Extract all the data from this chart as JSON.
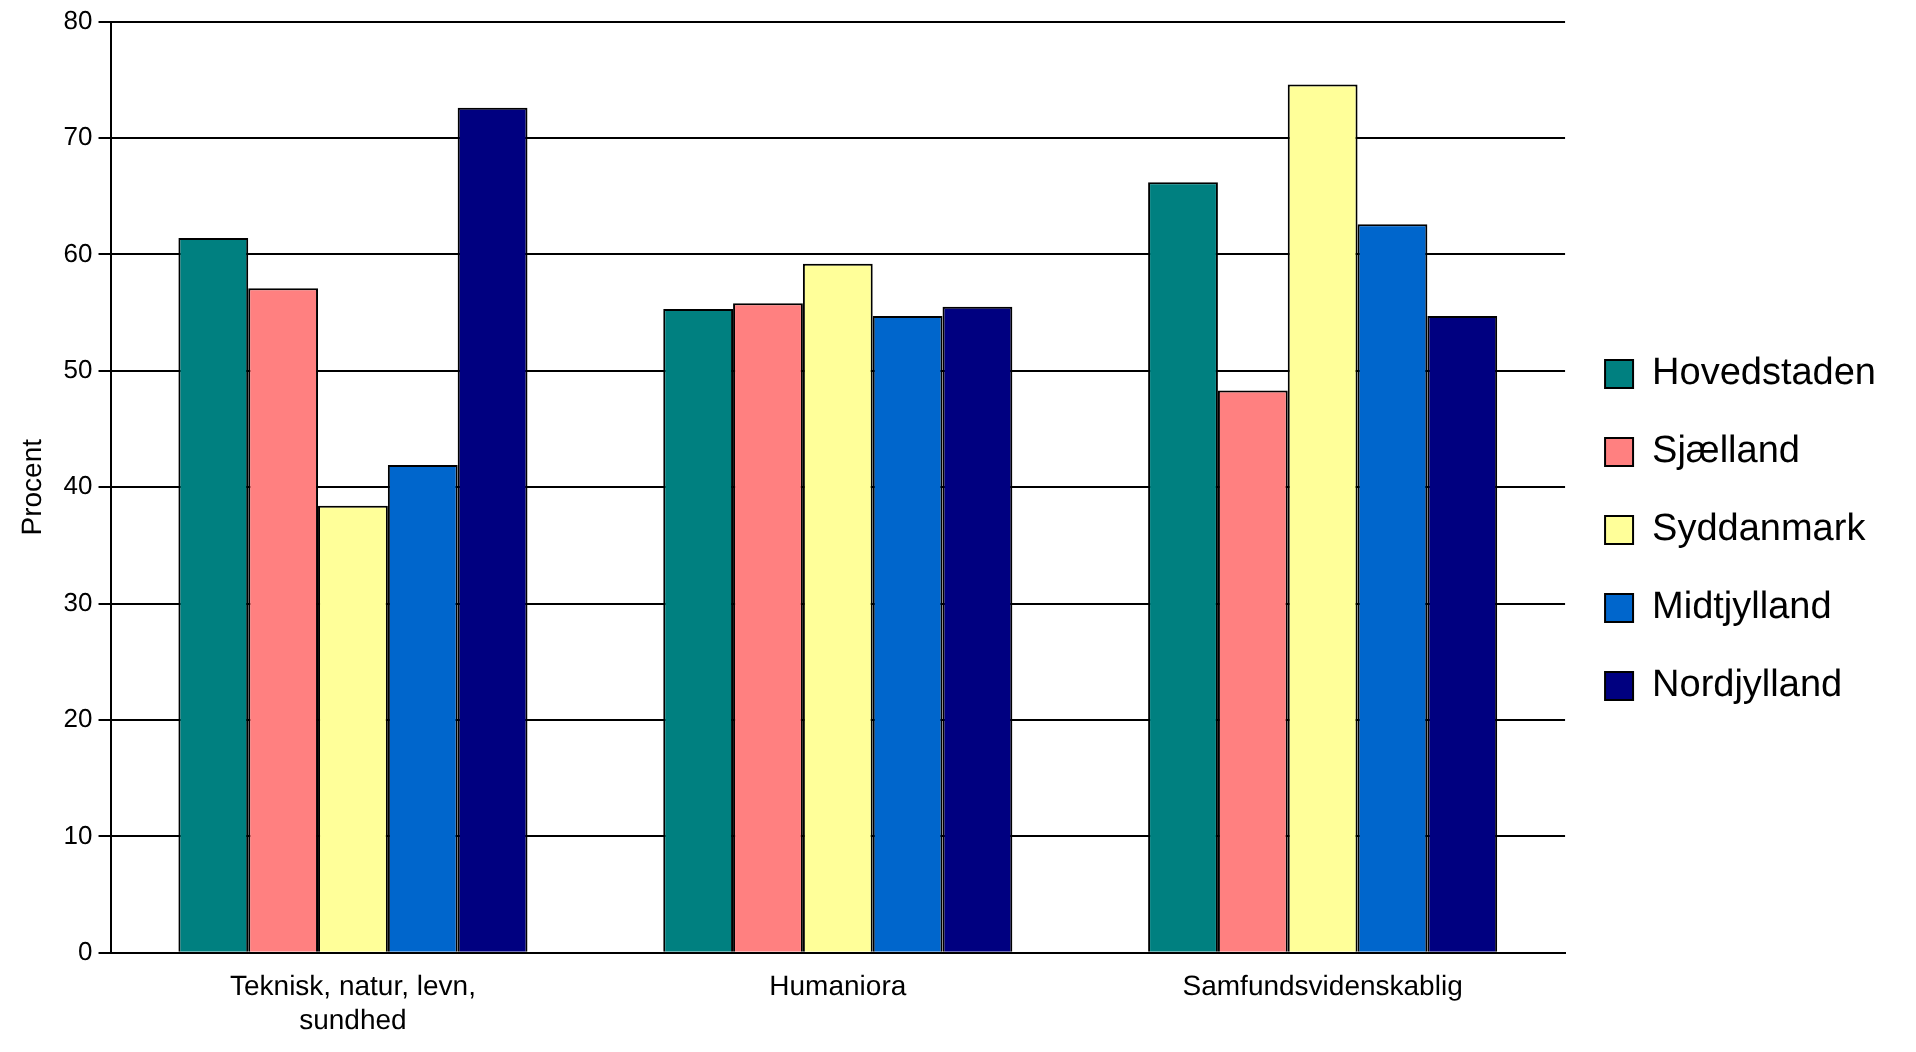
{
  "chart_data": {
    "type": "bar",
    "ylabel": "Procent",
    "categories": [
      "Teknisk, natur, levn, sundhed",
      "Humaniora",
      "Samfundsvidenskablig"
    ],
    "series": [
      {
        "name": "Hovedstaden",
        "color": "#008080",
        "values": [
          61.4,
          55.3,
          66.2
        ]
      },
      {
        "name": "Sjælland",
        "color": "#ff8080",
        "values": [
          57.1,
          55.8,
          48.3
        ]
      },
      {
        "name": "Syddanmark",
        "color": "#ffff99",
        "values": [
          38.4,
          59.2,
          74.6
        ]
      },
      {
        "name": "Midtjylland",
        "color": "#0066cc",
        "values": [
          41.9,
          54.7,
          62.6
        ]
      },
      {
        "name": "Nordjylland",
        "color": "#000080",
        "values": [
          72.6,
          55.5,
          54.7
        ]
      }
    ],
    "ylim": [
      0,
      80
    ],
    "yticks": [
      0,
      10,
      20,
      30,
      40,
      50,
      60,
      70,
      80
    ],
    "grid": "y",
    "legend": "right"
  }
}
